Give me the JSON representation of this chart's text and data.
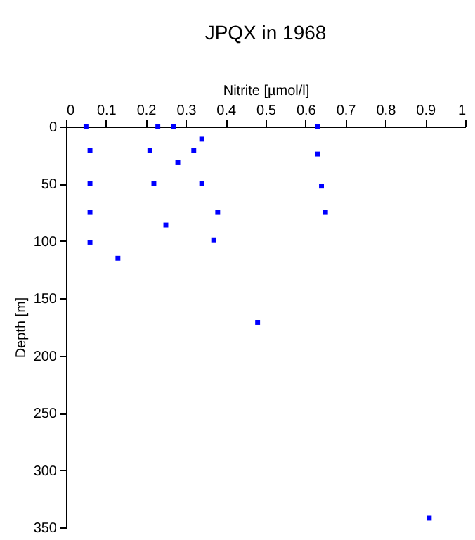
{
  "chart_data": {
    "type": "scatter",
    "title": "JPQX in 1968",
    "xlabel": "Nitrite [µmol/l]",
    "ylabel": "Depth [m]",
    "x": [
      0.05,
      0.23,
      0.27,
      0.63,
      0.34,
      0.06,
      0.21,
      0.32,
      0.63,
      0.28,
      0.06,
      0.22,
      0.34,
      0.64,
      0.06,
      0.38,
      0.65,
      0.25,
      0.37,
      0.06,
      0.13,
      0.48,
      0.91
    ],
    "values": [
      0,
      0,
      0,
      0,
      11,
      21,
      21,
      21,
      24,
      31,
      50,
      50,
      50,
      52,
      75,
      75,
      75,
      86,
      99,
      101,
      115,
      171,
      342
    ],
    "color": "#0000ff",
    "marker": "square",
    "xlim": [
      0,
      1
    ],
    "xticks": [
      0,
      0.1,
      0.2,
      0.3,
      0.4,
      0.5,
      0.6,
      0.7,
      0.8,
      0.9,
      1
    ],
    "ylim": [
      350,
      0
    ],
    "yticks": [
      0,
      50,
      100,
      150,
      200,
      250,
      300,
      350
    ],
    "grid": false
  }
}
